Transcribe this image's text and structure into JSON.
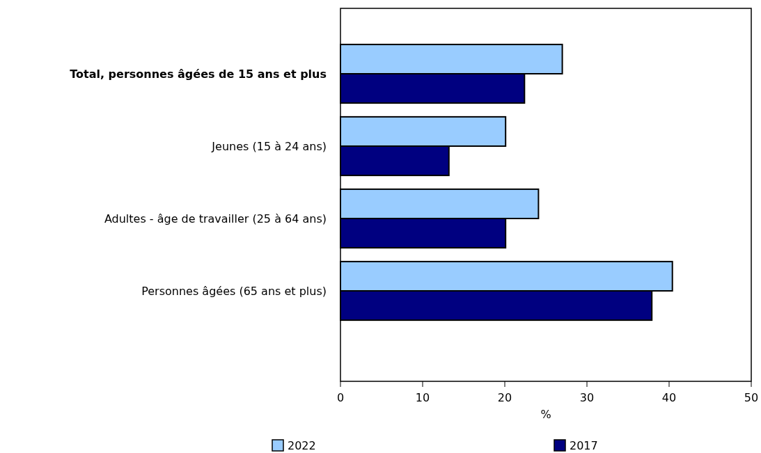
{
  "chart_data": {
    "type": "bar",
    "orientation": "horizontal",
    "xlabel": "%",
    "categories": [
      "Total, personnes âgées de 15 ans et plus",
      "Jeunes (15 à 24 ans)",
      "Adultes - âge de travailler (25 à 64 ans)",
      "Personnes âgées (65 ans et plus)"
    ],
    "series": [
      {
        "name": "2022",
        "color": "#99ccff",
        "values": [
          27.0,
          20.1,
          24.1,
          40.4
        ]
      },
      {
        "name": "2017",
        "color": "#000080",
        "values": [
          22.4,
          13.2,
          20.1,
          37.9
        ]
      }
    ],
    "xlim": [
      0,
      50
    ],
    "xticks": [
      0,
      10,
      20,
      30,
      40,
      50
    ],
    "grid": false,
    "legend": "bottom"
  }
}
